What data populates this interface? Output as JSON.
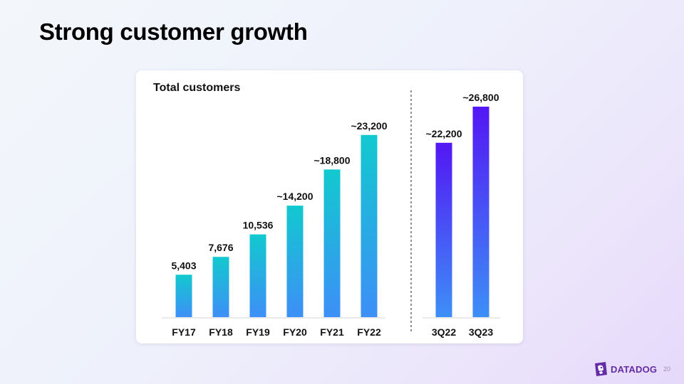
{
  "slide": {
    "title": "Strong customer growth",
    "page_number": "20",
    "brand": "DATADOG"
  },
  "colors": {
    "annual_bar_top": "#12c9cf",
    "annual_bar_bottom": "#3d8ff7",
    "quarter_bar_top": "#5317f4",
    "quarter_bar_bottom": "#3d8ff7",
    "brand": "#632ca6"
  },
  "chart_data": {
    "type": "bar",
    "title": "Total customers",
    "xlabel": "",
    "ylabel": "",
    "ylim": [
      0,
      26800
    ],
    "grid": false,
    "categories": [
      "FY17",
      "FY18",
      "FY19",
      "FY20",
      "FY21",
      "FY22",
      "3Q22",
      "3Q23"
    ],
    "values": [
      5403,
      7676,
      10536,
      14200,
      18800,
      23200,
      22200,
      26800
    ],
    "value_labels": [
      "5,403",
      "7,676",
      "10,536",
      "~14,200",
      "~18,800",
      "~23,200",
      "~22,200",
      "~26,800"
    ],
    "groups": [
      "annual",
      "annual",
      "annual",
      "annual",
      "annual",
      "annual",
      "quarterly",
      "quarterly"
    ]
  }
}
